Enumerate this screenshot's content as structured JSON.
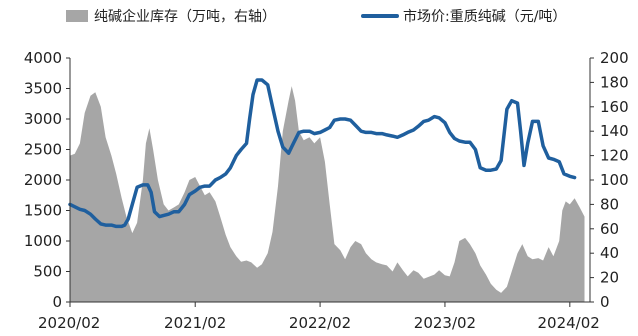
{
  "chart_data": {
    "type": "area+line",
    "legend": [
      {
        "label": "纯碱企业库存（万吨，右轴）",
        "kind": "area",
        "color": "#a6a6a6"
      },
      {
        "label": "市场价:重质纯碱（元/吨）",
        "kind": "line",
        "color": "#1f5f9e"
      }
    ],
    "x_ticks": [
      "2020/02",
      "2021/02",
      "2022/02",
      "2023/02",
      "2024/02"
    ],
    "x_range": [
      "2020-02-01",
      "2024-03-31"
    ],
    "left_axis": {
      "ticks": [
        "0",
        "500",
        "1000",
        "1500",
        "2000",
        "2500",
        "3000",
        "3500",
        "4000"
      ],
      "ylim": [
        0,
        4000
      ]
    },
    "right_axis": {
      "ticks": [
        "0",
        "20",
        "40",
        "60",
        "80",
        "100",
        "120",
        "140",
        "160",
        "180",
        "200"
      ],
      "ylim": [
        0,
        200
      ]
    },
    "series": [
      {
        "name": "纯碱企业库存（万吨，右轴）",
        "type": "area",
        "axis": "left",
        "color": "#a6a6a6",
        "points": [
          [
            "2020-02-01",
            2400
          ],
          [
            "2020-02-15",
            2430
          ],
          [
            "2020-03-01",
            2600
          ],
          [
            "2020-03-15",
            3100
          ],
          [
            "2020-04-01",
            3380
          ],
          [
            "2020-04-15",
            3440
          ],
          [
            "2020-05-01",
            3200
          ],
          [
            "2020-05-15",
            2700
          ],
          [
            "2020-06-01",
            2400
          ],
          [
            "2020-06-15",
            2100
          ],
          [
            "2020-07-01",
            1700
          ],
          [
            "2020-07-15",
            1400
          ],
          [
            "2020-08-01",
            1130
          ],
          [
            "2020-08-15",
            1300
          ],
          [
            "2020-09-01",
            2000
          ],
          [
            "2020-09-10",
            2600
          ],
          [
            "2020-09-20",
            2850
          ],
          [
            "2020-10-01",
            2500
          ],
          [
            "2020-10-15",
            2000
          ],
          [
            "2020-11-01",
            1600
          ],
          [
            "2020-11-15",
            1500
          ],
          [
            "2020-12-01",
            1550
          ],
          [
            "2020-12-15",
            1600
          ],
          [
            "2021-01-01",
            1800
          ],
          [
            "2021-01-15",
            2000
          ],
          [
            "2021-02-01",
            2050
          ],
          [
            "2021-02-15",
            1900
          ],
          [
            "2021-03-01",
            1750
          ],
          [
            "2021-03-15",
            1800
          ],
          [
            "2021-04-01",
            1650
          ],
          [
            "2021-04-15",
            1400
          ],
          [
            "2021-05-01",
            1100
          ],
          [
            "2021-05-15",
            900
          ],
          [
            "2021-06-01",
            750
          ],
          [
            "2021-06-15",
            660
          ],
          [
            "2021-07-01",
            680
          ],
          [
            "2021-07-15",
            650
          ],
          [
            "2021-08-01",
            560
          ],
          [
            "2021-08-15",
            620
          ],
          [
            "2021-09-01",
            800
          ],
          [
            "2021-09-15",
            1150
          ],
          [
            "2021-10-01",
            1900
          ],
          [
            "2021-10-15",
            2800
          ],
          [
            "2021-11-01",
            3300
          ],
          [
            "2021-11-10",
            3540
          ],
          [
            "2021-11-20",
            3300
          ],
          [
            "2021-12-01",
            2800
          ],
          [
            "2021-12-15",
            2650
          ],
          [
            "2022-01-01",
            2700
          ],
          [
            "2022-01-15",
            2600
          ],
          [
            "2022-02-01",
            2700
          ],
          [
            "2022-02-15",
            2300
          ],
          [
            "2022-03-01",
            1600
          ],
          [
            "2022-03-15",
            950
          ],
          [
            "2022-04-01",
            850
          ],
          [
            "2022-04-15",
            700
          ],
          [
            "2022-05-01",
            900
          ],
          [
            "2022-05-15",
            1000
          ],
          [
            "2022-06-01",
            950
          ],
          [
            "2022-06-15",
            800
          ],
          [
            "2022-07-01",
            700
          ],
          [
            "2022-07-15",
            650
          ],
          [
            "2022-08-01",
            620
          ],
          [
            "2022-08-15",
            600
          ],
          [
            "2022-09-01",
            500
          ],
          [
            "2022-09-15",
            650
          ],
          [
            "2022-10-01",
            520
          ],
          [
            "2022-10-15",
            420
          ],
          [
            "2022-11-01",
            520
          ],
          [
            "2022-11-15",
            480
          ],
          [
            "2022-12-01",
            380
          ],
          [
            "2023-01-01",
            450
          ],
          [
            "2023-01-15",
            520
          ],
          [
            "2023-02-01",
            440
          ],
          [
            "2023-02-15",
            420
          ],
          [
            "2023-03-01",
            650
          ],
          [
            "2023-03-15",
            1000
          ],
          [
            "2023-04-01",
            1050
          ],
          [
            "2023-04-15",
            950
          ],
          [
            "2023-05-01",
            800
          ],
          [
            "2023-05-15",
            600
          ],
          [
            "2023-06-01",
            450
          ],
          [
            "2023-06-15",
            300
          ],
          [
            "2023-07-01",
            200
          ],
          [
            "2023-07-15",
            150
          ],
          [
            "2023-08-01",
            250
          ],
          [
            "2023-08-15",
            500
          ],
          [
            "2023-09-01",
            800
          ],
          [
            "2023-09-15",
            950
          ],
          [
            "2023-10-01",
            750
          ],
          [
            "2023-10-15",
            700
          ],
          [
            "2023-11-01",
            720
          ],
          [
            "2023-11-15",
            680
          ],
          [
            "2023-12-01",
            900
          ],
          [
            "2023-12-15",
            750
          ],
          [
            "2024-01-01",
            1000
          ],
          [
            "2024-01-10",
            1500
          ],
          [
            "2024-01-20",
            1650
          ],
          [
            "2024-02-01",
            1600
          ],
          [
            "2024-02-15",
            1700
          ],
          [
            "2024-03-01",
            1550
          ],
          [
            "2024-03-15",
            1400
          ]
        ]
      },
      {
        "name": "市场价:重质纯碱（元/吨）",
        "type": "line",
        "axis": "right",
        "color": "#1f5f9e",
        "points": [
          [
            "2020-02-01",
            80
          ],
          [
            "2020-02-15",
            78
          ],
          [
            "2020-03-01",
            76
          ],
          [
            "2020-03-15",
            75
          ],
          [
            "2020-04-01",
            72
          ],
          [
            "2020-04-15",
            68
          ],
          [
            "2020-05-01",
            64
          ],
          [
            "2020-05-15",
            63
          ],
          [
            "2020-06-01",
            63
          ],
          [
            "2020-06-15",
            62
          ],
          [
            "2020-07-01",
            62
          ],
          [
            "2020-07-10",
            63
          ],
          [
            "2020-07-20",
            68
          ],
          [
            "2020-08-01",
            80
          ],
          [
            "2020-08-15",
            94
          ],
          [
            "2020-09-01",
            96
          ],
          [
            "2020-09-15",
            96
          ],
          [
            "2020-09-25",
            90
          ],
          [
            "2020-10-05",
            74
          ],
          [
            "2020-10-20",
            70
          ],
          [
            "2020-11-01",
            71
          ],
          [
            "2020-11-15",
            72
          ],
          [
            "2020-12-01",
            74
          ],
          [
            "2020-12-15",
            74
          ],
          [
            "2021-01-01",
            80
          ],
          [
            "2021-01-15",
            88
          ],
          [
            "2021-02-01",
            91
          ],
          [
            "2021-02-15",
            94
          ],
          [
            "2021-03-01",
            95
          ],
          [
            "2021-03-15",
            95
          ],
          [
            "2021-04-01",
            100
          ],
          [
            "2021-04-15",
            102
          ],
          [
            "2021-05-01",
            105
          ],
          [
            "2021-05-15",
            110
          ],
          [
            "2021-06-01",
            120
          ],
          [
            "2021-06-15",
            125
          ],
          [
            "2021-07-01",
            130
          ],
          [
            "2021-07-10",
            150
          ],
          [
            "2021-07-20",
            170
          ],
          [
            "2021-08-01",
            182
          ],
          [
            "2021-08-15",
            182
          ],
          [
            "2021-09-01",
            178
          ],
          [
            "2021-09-15",
            160
          ],
          [
            "2021-10-01",
            140
          ],
          [
            "2021-10-15",
            127
          ],
          [
            "2021-11-01",
            122
          ],
          [
            "2021-11-15",
            130
          ],
          [
            "2021-12-01",
            139
          ],
          [
            "2021-12-15",
            140
          ],
          [
            "2022-01-01",
            140
          ],
          [
            "2022-01-15",
            138
          ],
          [
            "2022-02-01",
            139
          ],
          [
            "2022-02-15",
            141
          ],
          [
            "2022-03-01",
            143
          ],
          [
            "2022-03-15",
            149
          ],
          [
            "2022-04-01",
            150
          ],
          [
            "2022-04-15",
            150
          ],
          [
            "2022-05-01",
            149
          ],
          [
            "2022-05-15",
            145
          ],
          [
            "2022-06-01",
            140
          ],
          [
            "2022-06-15",
            139
          ],
          [
            "2022-07-01",
            139
          ],
          [
            "2022-07-15",
            138
          ],
          [
            "2022-08-01",
            138
          ],
          [
            "2022-08-15",
            137
          ],
          [
            "2022-09-01",
            136
          ],
          [
            "2022-09-15",
            135
          ],
          [
            "2022-10-01",
            137
          ],
          [
            "2022-10-15",
            139
          ],
          [
            "2022-11-01",
            141
          ],
          [
            "2022-11-15",
            144
          ],
          [
            "2022-12-01",
            148
          ],
          [
            "2022-12-15",
            149
          ],
          [
            "2023-01-01",
            152
          ],
          [
            "2023-01-15",
            151
          ],
          [
            "2023-02-01",
            147
          ],
          [
            "2023-02-15",
            139
          ],
          [
            "2023-03-01",
            134
          ],
          [
            "2023-03-15",
            132
          ],
          [
            "2023-04-01",
            131
          ],
          [
            "2023-04-15",
            131
          ],
          [
            "2023-05-01",
            125
          ],
          [
            "2023-05-15",
            110
          ],
          [
            "2023-06-01",
            108
          ],
          [
            "2023-06-15",
            108
          ],
          [
            "2023-07-01",
            109
          ],
          [
            "2023-07-15",
            116
          ],
          [
            "2023-08-01",
            158
          ],
          [
            "2023-08-15",
            165
          ],
          [
            "2023-09-01",
            163
          ],
          [
            "2023-09-10",
            140
          ],
          [
            "2023-09-20",
            112
          ],
          [
            "2023-10-01",
            130
          ],
          [
            "2023-10-15",
            148
          ],
          [
            "2023-11-01",
            148
          ],
          [
            "2023-11-15",
            128
          ],
          [
            "2023-12-01",
            118
          ],
          [
            "2023-12-15",
            117
          ],
          [
            "2024-01-01",
            115
          ],
          [
            "2024-01-15",
            105
          ],
          [
            "2024-02-01",
            103
          ],
          [
            "2024-02-15",
            102
          ]
        ]
      }
    ]
  }
}
